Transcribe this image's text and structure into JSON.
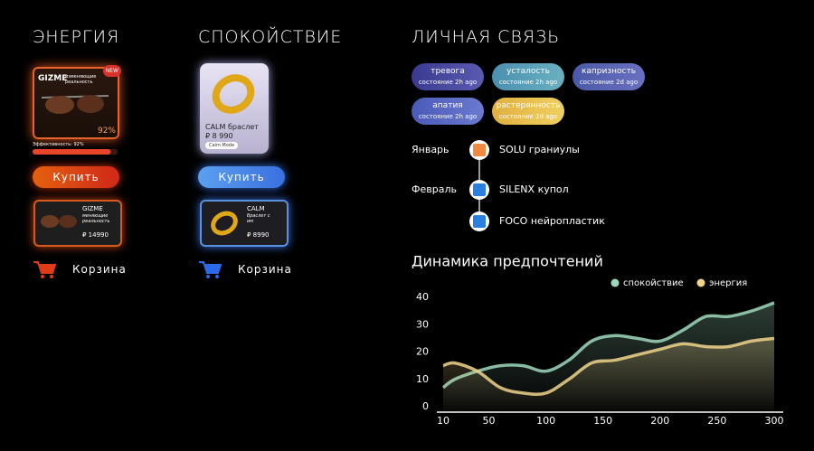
{
  "energy": {
    "title": "ЭНЕРГИЯ",
    "product": {
      "brand": "GIZME",
      "tagline": "изменяющие реальность",
      "badge": "NEW",
      "percent": "92%",
      "efficiency_label": "Эффективность: 92%",
      "efficiency": 92
    },
    "buy": "Купить",
    "cart_item": {
      "name": "GIZME",
      "desc": "меняющие реальность",
      "price": "₽ 14990"
    },
    "cart": "Корзина"
  },
  "calm": {
    "title": "СПОКОЙСТВИЕ",
    "product": {
      "name": "CALM браслет",
      "price": "₽ 8 990",
      "mode": "Calm Mode"
    },
    "buy": "Купить",
    "cart_item": {
      "name": "CALM",
      "desc": "браслет с им",
      "price": "₽ 8990"
    },
    "cart": "Корзина"
  },
  "personal": {
    "title": "ЛИЧНАЯ СВЯЗЬ",
    "moods": [
      {
        "name": "тревога",
        "status": "состояние 2h ago"
      },
      {
        "name": "усталость",
        "status": "состояние 2h ago"
      },
      {
        "name": "капризность",
        "status": "состояние 2d ago"
      },
      {
        "name": "апатия",
        "status": "состояние 2h ago"
      },
      {
        "name": "растерянность",
        "status": "состояние 2d ago"
      }
    ],
    "timeline": [
      {
        "month": "Январь",
        "item": "SOLU граниулы"
      },
      {
        "month": "Февраль",
        "item": "SILENX купол"
      },
      {
        "item": "FOCO нейропластик"
      }
    ]
  },
  "chart": {
    "type": "line",
    "title": "Динамика предпочтений",
    "x": [
      10,
      20,
      40,
      60,
      80,
      100,
      120,
      140,
      160,
      180,
      200,
      220,
      240,
      260,
      280,
      300
    ],
    "series": [
      {
        "name": "спокойствие",
        "color": "#9fd9bd",
        "values": [
          7,
          10,
          13,
          15,
          15,
          13,
          17,
          24,
          26,
          25,
          24,
          28,
          33,
          33,
          35,
          38
        ]
      },
      {
        "name": "энергия",
        "color": "#f0d48c",
        "values": [
          15,
          16,
          13,
          7,
          5,
          5,
          10,
          16,
          17,
          19,
          21,
          23,
          22,
          22,
          24,
          25
        ]
      }
    ],
    "xlim": [
      10,
      300
    ],
    "ylim": [
      0,
      40
    ],
    "xticks": [
      10,
      50,
      100,
      150,
      200,
      250,
      300
    ],
    "yticks": [
      0,
      10,
      20,
      30,
      40
    ],
    "legend": "top-right"
  }
}
